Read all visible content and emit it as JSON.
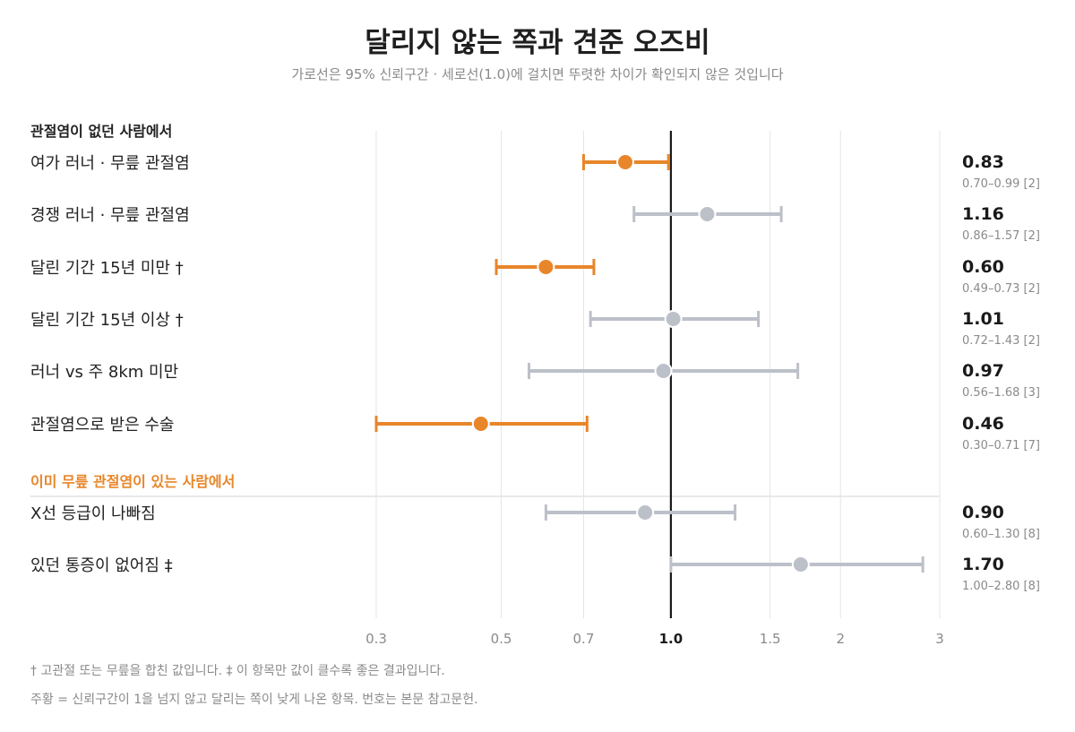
{
  "title": "달리지 않는 쪽과 견준 오즈비",
  "subtitle": "가로선은 95% 신뢰구간 · 세로선(1.0)에 걸치면 뚜렷한 차이가 확인되지 않은 것입니다",
  "groups": [
    {
      "label": "관절염이 없던 사람에서",
      "color": "#222222"
    },
    {
      "label": "이미 무릎 관절염이 있는 사람에서",
      "color": "#e8862a"
    }
  ],
  "colors": {
    "highlight": "#e8862a",
    "neutral": "#bcc0c9",
    "refline": "#1a1a1a",
    "grid": "#e5e5e5"
  },
  "chart_data": {
    "type": "forest",
    "x_scale": "log",
    "xlim": [
      0.3,
      3
    ],
    "xticks": [
      "0.3",
      "0.5",
      "0.7",
      "1.0",
      "1.5",
      "2",
      "3"
    ],
    "xtick_values": [
      0.3,
      0.5,
      0.7,
      1.0,
      1.5,
      2,
      3
    ],
    "reference": 1.0,
    "rows": [
      {
        "group": 0,
        "label": "여가 러너 · 무릎 관절염",
        "or": 0.83,
        "lo": 0.7,
        "hi": 0.99,
        "or_text": "0.83",
        "ci_text": "0.70–0.99 [2]",
        "highlight": true
      },
      {
        "group": 0,
        "label": "경쟁 러너 · 무릎 관절염",
        "or": 1.16,
        "lo": 0.86,
        "hi": 1.57,
        "or_text": "1.16",
        "ci_text": "0.86–1.57 [2]",
        "highlight": false
      },
      {
        "group": 0,
        "label": "달린 기간 15년 미만 †",
        "or": 0.6,
        "lo": 0.49,
        "hi": 0.73,
        "or_text": "0.60",
        "ci_text": "0.49–0.73 [2]",
        "highlight": true
      },
      {
        "group": 0,
        "label": "달린 기간 15년 이상 †",
        "or": 1.01,
        "lo": 0.72,
        "hi": 1.43,
        "or_text": "1.01",
        "ci_text": "0.72–1.43 [2]",
        "highlight": false
      },
      {
        "group": 0,
        "label": "러너 vs 주 8km 미만",
        "or": 0.97,
        "lo": 0.56,
        "hi": 1.68,
        "or_text": "0.97",
        "ci_text": "0.56–1.68 [3]",
        "highlight": false
      },
      {
        "group": 0,
        "label": "관절염으로 받은 수술",
        "or": 0.46,
        "lo": 0.3,
        "hi": 0.71,
        "or_text": "0.46",
        "ci_text": "0.30–0.71 [7]",
        "highlight": true
      },
      {
        "group": 1,
        "label": "X선 등급이 나빠짐",
        "or": 0.9,
        "lo": 0.6,
        "hi": 1.3,
        "or_text": "0.90",
        "ci_text": "0.60–1.30 [8]",
        "highlight": false
      },
      {
        "group": 1,
        "label": "있던 통증이 없어짐 ‡",
        "or": 1.7,
        "lo": 1.0,
        "hi": 2.8,
        "or_text": "1.70",
        "ci_text": "1.00–2.80 [8]",
        "highlight": false
      }
    ]
  },
  "footnotes": [
    "† 고관절 또는 무릎을 합친 값입니다.   ‡ 이 항목만 값이 클수록 좋은 결과입니다.",
    "주황 = 신뢰구간이 1을 넘지 않고 달리는 쪽이 낮게 나온 항목.  번호는 본문 참고문헌."
  ]
}
